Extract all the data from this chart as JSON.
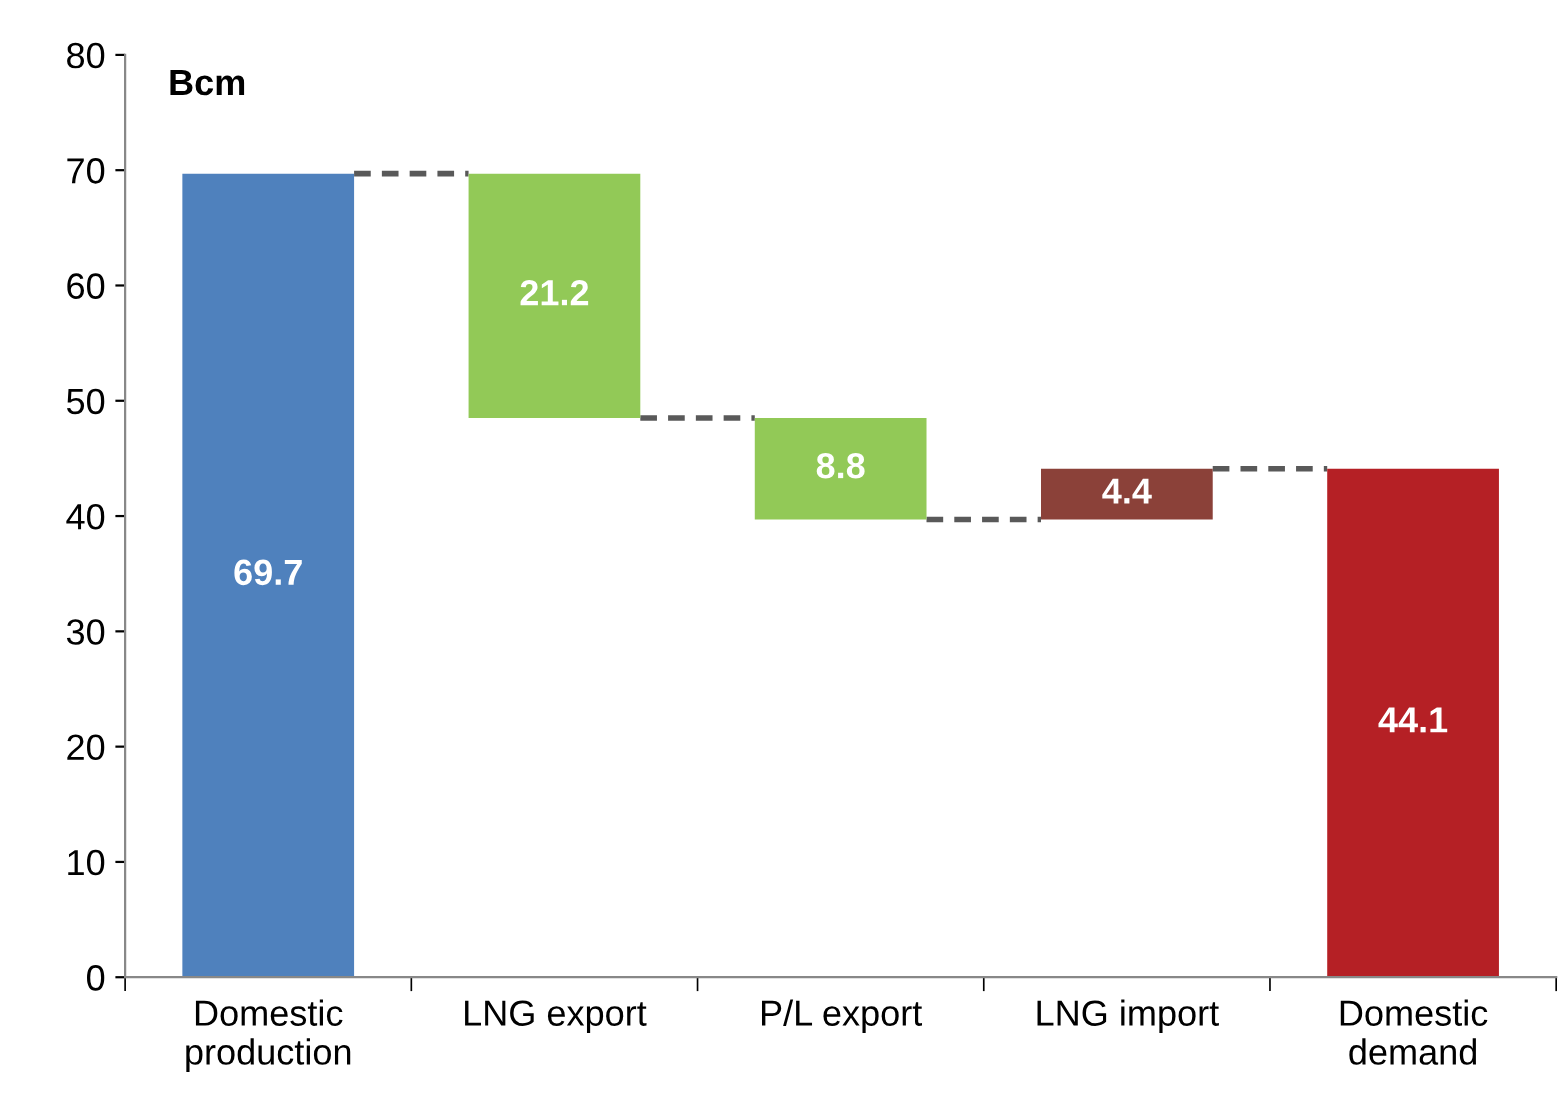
{
  "chart_data": {
    "type": "bar",
    "ylabel": "Bcm",
    "categories": [
      "Domestic\nproduction",
      "LNG export",
      "P/L export",
      "LNG import",
      "Domestic\ndemand"
    ],
    "values": [
      69.7,
      21.2,
      8.8,
      4.4,
      44.1
    ],
    "base": [
      0,
      48.5,
      39.7,
      39.7,
      0
    ],
    "colors": [
      "#4f81bd",
      "#92c957",
      "#92c957",
      "#8b4139",
      "#b52025"
    ],
    "ylim": [
      0,
      80
    ],
    "yticks": [
      0,
      10,
      20,
      30,
      40,
      50,
      60,
      70,
      80
    ],
    "data_labels": true,
    "grid": false,
    "legend": false
  }
}
